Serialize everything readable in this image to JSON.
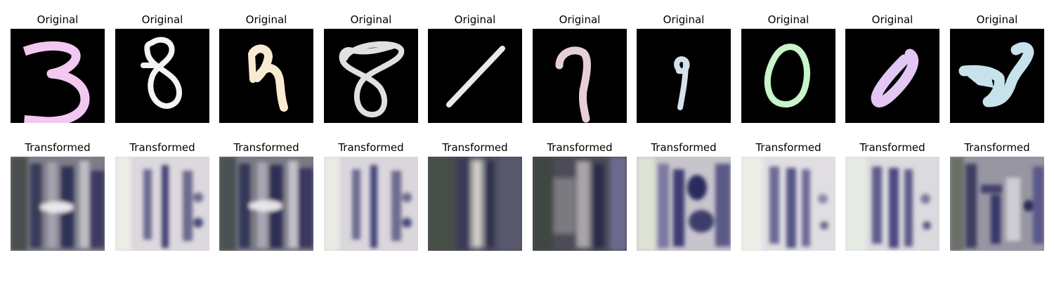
{
  "rows": [
    {
      "id": "original",
      "items": [
        {
          "title": "Original",
          "digit": "3",
          "color": "#f2c8f0"
        },
        {
          "title": "Original",
          "digit": "8",
          "color": "#f4f4f4"
        },
        {
          "title": "Original",
          "digit": "9",
          "color": "#fbead2"
        },
        {
          "title": "Original",
          "digit": "8",
          "color": "#e0e0e0"
        },
        {
          "title": "Original",
          "digit": "1",
          "color": "#eaeaea"
        },
        {
          "title": "Original",
          "digit": "7",
          "color": "#e6cfd8"
        },
        {
          "title": "Original",
          "digit": "9",
          "color": "#d4e2ee"
        },
        {
          "title": "Original",
          "digit": "0",
          "color": "#c8f4cc"
        },
        {
          "title": "Original",
          "digit": "0",
          "color": "#e2c6f4"
        },
        {
          "title": "Original",
          "digit": "2",
          "color": "#c8e2ec"
        }
      ]
    },
    {
      "id": "transformed",
      "items": [
        {
          "title": "Transformed",
          "tone": "dark"
        },
        {
          "title": "Transformed",
          "tone": "light"
        },
        {
          "title": "Transformed",
          "tone": "dark"
        },
        {
          "title": "Transformed",
          "tone": "light"
        },
        {
          "title": "Transformed",
          "tone": "dark"
        },
        {
          "title": "Transformed",
          "tone": "dark"
        },
        {
          "title": "Transformed",
          "tone": "light"
        },
        {
          "title": "Transformed",
          "tone": "light"
        },
        {
          "title": "Transformed",
          "tone": "light"
        },
        {
          "title": "Transformed",
          "tone": "dark"
        }
      ]
    }
  ]
}
